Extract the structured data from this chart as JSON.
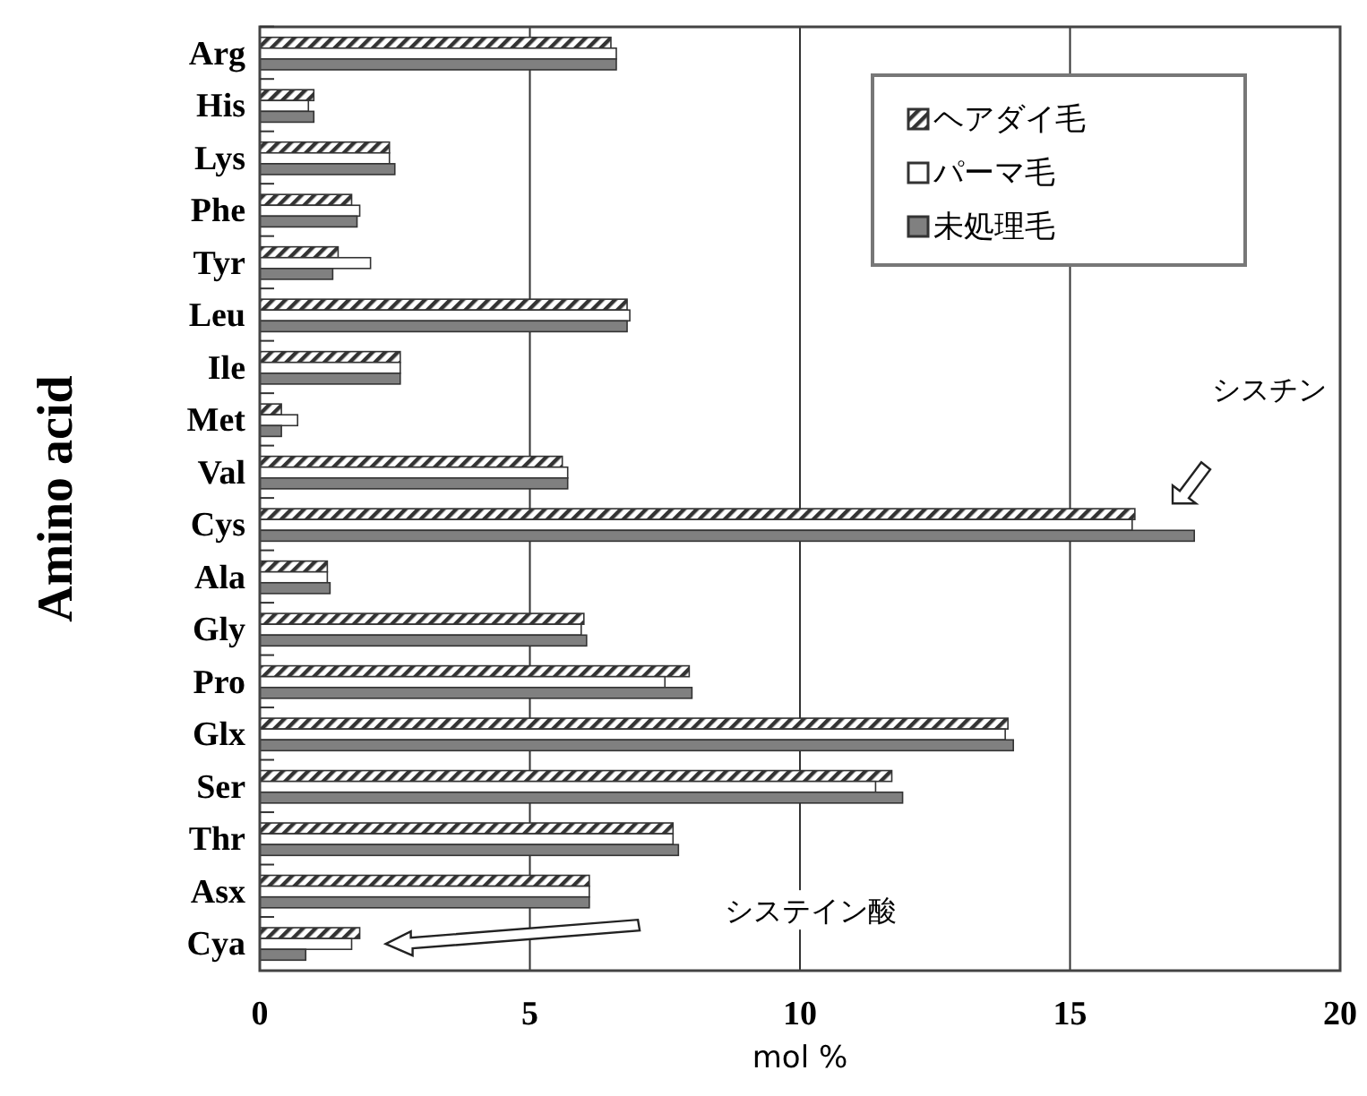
{
  "chart_data": {
    "type": "bar",
    "orientation": "horizontal",
    "xlabel": "mol %",
    "ylabel": "Amino acid",
    "categories": [
      "Arg",
      "His",
      "Lys",
      "Phe",
      "Tyr",
      "Leu",
      "Ile",
      "Met",
      "Val",
      "Cys",
      "Ala",
      "Gly",
      "Pro",
      "Glx",
      "Ser",
      "Thr",
      "Asx",
      "Cya"
    ],
    "series": [
      {
        "name": "ヘアダイ毛",
        "color": "#333333",
        "values": [
          6.5,
          1.0,
          2.4,
          1.7,
          1.45,
          6.8,
          2.6,
          0.4,
          5.6,
          16.2,
          1.25,
          6.0,
          7.95,
          13.85,
          11.7,
          7.65,
          6.1,
          1.85
        ]
      },
      {
        "name": "パーマ毛",
        "color": "#ffffff",
        "values": [
          6.6,
          0.9,
          2.4,
          1.85,
          2.05,
          6.85,
          2.6,
          0.7,
          5.7,
          16.15,
          1.25,
          5.95,
          7.5,
          13.8,
          11.4,
          7.65,
          6.1,
          1.7
        ]
      },
      {
        "name": "未処理毛",
        "color": "#808080",
        "values": [
          6.6,
          1.0,
          2.5,
          1.8,
          1.35,
          6.8,
          2.6,
          0.4,
          5.7,
          17.3,
          1.3,
          6.05,
          8.0,
          13.95,
          11.9,
          7.75,
          6.1,
          0.85
        ]
      }
    ],
    "xlim": [
      0,
      20
    ],
    "xticks": [
      0,
      5,
      10,
      15,
      20
    ],
    "grid": "x",
    "legend": "top right",
    "annotations": [
      "シスチン",
      "システイン酸"
    ]
  }
}
